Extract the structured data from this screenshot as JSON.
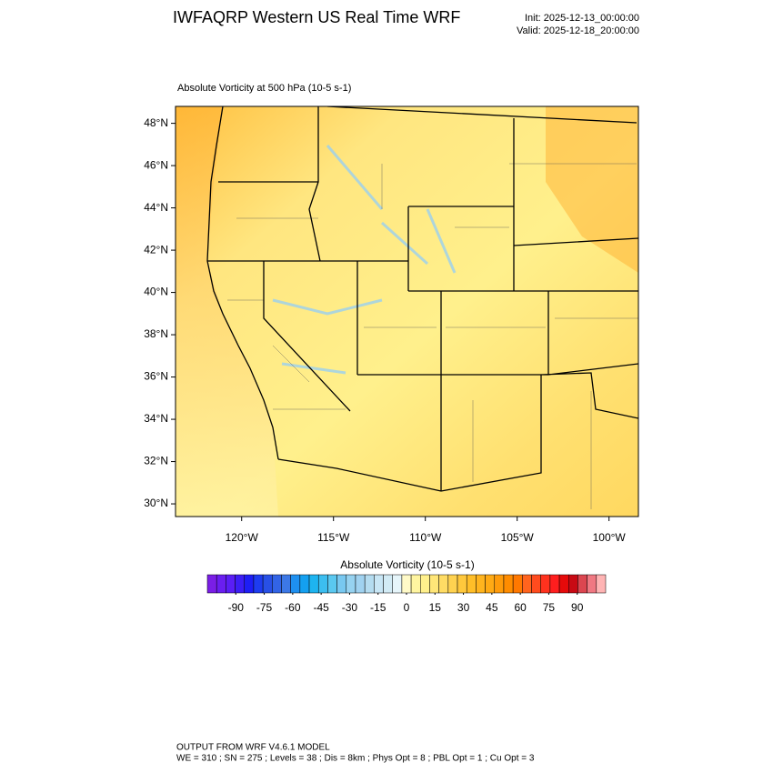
{
  "header": {
    "title": "IWFAQRP Western US Real Time WRF",
    "init": "Init: 2025-12-13_00:00:00",
    "valid": "Valid: 2025-12-18_20:00:00"
  },
  "map": {
    "subtitle": "Absolute Vorticity at 500 hPa   (10-5 s-1)",
    "xlim": [
      -123.6,
      -98.4
    ],
    "ylim": [
      29.4,
      48.8
    ],
    "xticks": [
      {
        "value": -120,
        "label": "120°W"
      },
      {
        "value": -115,
        "label": "115°W"
      },
      {
        "value": -110,
        "label": "110°W"
      },
      {
        "value": -105,
        "label": "105°W"
      },
      {
        "value": -100,
        "label": "100°W"
      }
    ],
    "yticks": [
      {
        "value": 30,
        "label": "30°N"
      },
      {
        "value": 32,
        "label": "32°N"
      },
      {
        "value": 34,
        "label": "34°N"
      },
      {
        "value": 36,
        "label": "36°N"
      },
      {
        "value": 38,
        "label": "38°N"
      },
      {
        "value": 40,
        "label": "40°N"
      },
      {
        "value": 42,
        "label": "42°N"
      },
      {
        "value": 44,
        "label": "44°N"
      },
      {
        "value": 46,
        "label": "46°N"
      },
      {
        "value": 48,
        "label": "48°N"
      }
    ]
  },
  "colorbar": {
    "title": "Absolute Vorticity  (10-5 s-1)",
    "range": [
      -105,
      105
    ],
    "ticks": [
      -90,
      -75,
      -60,
      -45,
      -30,
      -15,
      0,
      15,
      30,
      45,
      60,
      75,
      90
    ],
    "colors": [
      "#7a1ee6",
      "#6a1ef0",
      "#5a1ef5",
      "#3c1ef5",
      "#1e1ef5",
      "#1e3cf0",
      "#2850e6",
      "#3264e6",
      "#3c78e6",
      "#1e90f0",
      "#14a0f0",
      "#1eb4f0",
      "#3cbef0",
      "#5ac8f0",
      "#78c8f0",
      "#96d2f0",
      "#a0d2f0",
      "#b4dcf0",
      "#c8e6f5",
      "#d2ebf5",
      "#e6f5fa",
      "#fffac8",
      "#fff5a0",
      "#fff08c",
      "#ffe678",
      "#ffdc64",
      "#ffd250",
      "#ffc83c",
      "#ffbe28",
      "#ffb41e",
      "#ffaa14",
      "#ff9b0a",
      "#ff8c00",
      "#ff7800",
      "#ff641e",
      "#ff4b1e",
      "#ff321e",
      "#ff1e1e",
      "#e60a0a",
      "#c80a14",
      "#dc4650",
      "#f07882",
      "#ffb4b4"
    ]
  },
  "footer": {
    "line1": "OUTPUT FROM WRF V4.6.1 MODEL",
    "line2": "WE = 310 ; SN = 275 ; Levels = 38 ; Dis = 8km ; Phys Opt = 8 ; PBL Opt = 1 ; Cu Opt = 3"
  }
}
